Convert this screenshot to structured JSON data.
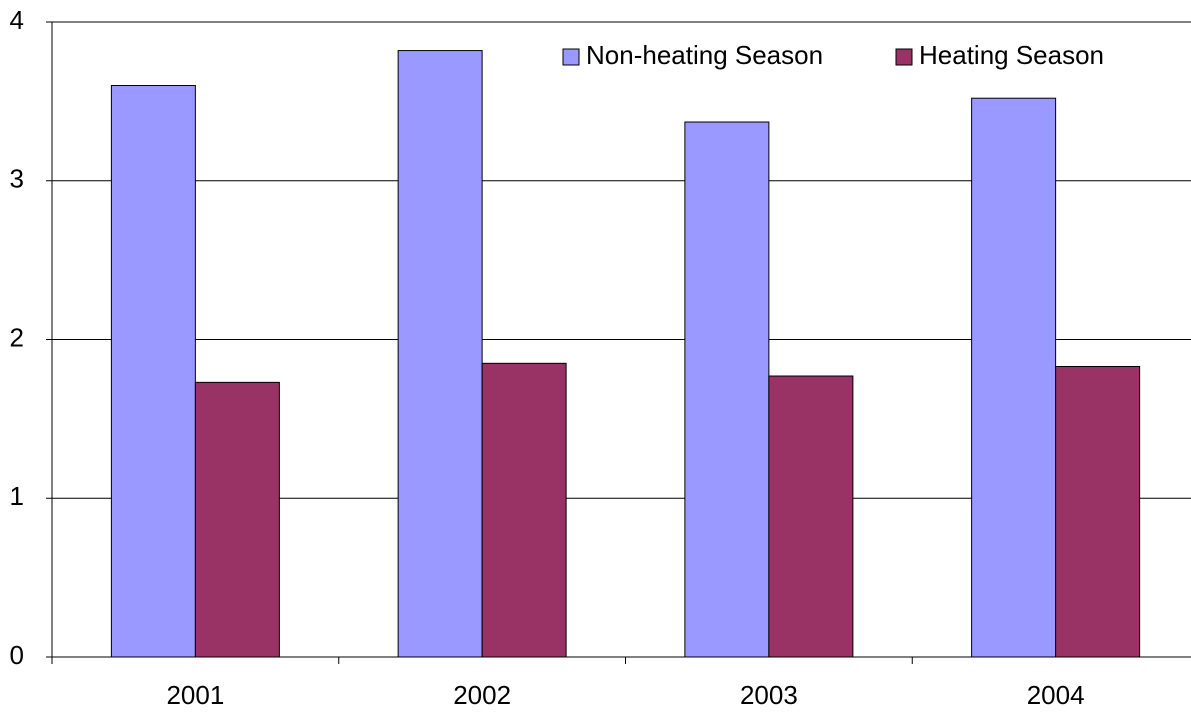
{
  "chart_data": {
    "type": "bar",
    "categories": [
      "2001",
      "2002",
      "2003",
      "2004"
    ],
    "series": [
      {
        "name": "Non-heating Season",
        "color": "#9999ff",
        "values": [
          3.6,
          3.82,
          3.37,
          3.52
        ]
      },
      {
        "name": "Heating Season",
        "color": "#993366",
        "values": [
          1.73,
          1.85,
          1.77,
          1.83
        ]
      }
    ],
    "ylim": [
      0,
      4
    ],
    "yticks": [
      0,
      1,
      2,
      3,
      4
    ],
    "grid": true,
    "legend": "top-right"
  }
}
